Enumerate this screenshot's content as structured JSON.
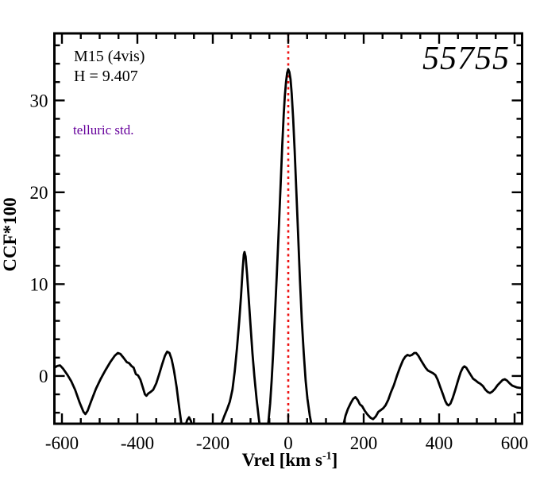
{
  "annotations": {
    "cluster": "M15 (4vis)",
    "magnitude": "H = 9.407",
    "note": "telluric std.",
    "id_number": "55755"
  },
  "labels": {
    "ylabel": "CCF*100",
    "xlabel_main": "Vrel [km s",
    "xlabel_sup": "-1",
    "xlabel_close": "]"
  },
  "colors": {
    "curve": "#000000",
    "frame": "#000000",
    "marker_line": "#ee1111",
    "note_text": "#66009b",
    "background": "#ffffff"
  },
  "chart_data": {
    "type": "line",
    "title": "",
    "xlabel": "Vrel [km s^-1]",
    "ylabel": "CCF*100",
    "xlim": [
      -620,
      620
    ],
    "ylim": [
      -5.2,
      37.3
    ],
    "x_major_ticks": [
      -600,
      -400,
      -200,
      0,
      200,
      400,
      600
    ],
    "x_tick_labels": [
      "-600",
      "-400",
      "-200",
      "0",
      "200",
      "400",
      "600"
    ],
    "x_minor_step": 50,
    "y_major_ticks": [
      0,
      10,
      20,
      30
    ],
    "y_tick_labels": [
      "0",
      "10",
      "20",
      "30"
    ],
    "y_minor_step": 2,
    "grid": false,
    "legend": null,
    "marker_line_x": 0,
    "series": [
      {
        "name": "ccf",
        "points": [
          [
            -620,
            0.9
          ],
          [
            -612,
            1.1
          ],
          [
            -605,
            1.15
          ],
          [
            -597,
            0.8
          ],
          [
            -585,
            0.1
          ],
          [
            -575,
            -0.6
          ],
          [
            -565,
            -1.5
          ],
          [
            -553,
            -2.9
          ],
          [
            -543,
            -3.9
          ],
          [
            -538,
            -4.15
          ],
          [
            -532,
            -3.8
          ],
          [
            -522,
            -2.7
          ],
          [
            -510,
            -1.4
          ],
          [
            -497,
            -0.3
          ],
          [
            -485,
            0.6
          ],
          [
            -472,
            1.5
          ],
          [
            -460,
            2.2
          ],
          [
            -452,
            2.5
          ],
          [
            -445,
            2.4
          ],
          [
            -437,
            2.0
          ],
          [
            -428,
            1.5
          ],
          [
            -422,
            1.4
          ],
          [
            -416,
            1.1
          ],
          [
            -410,
            0.9
          ],
          [
            -404,
            0.2
          ],
          [
            -398,
            0.05
          ],
          [
            -392,
            -0.4
          ],
          [
            -386,
            -1.2
          ],
          [
            -380,
            -2.0
          ],
          [
            -376,
            -2.15
          ],
          [
            -371,
            -1.9
          ],
          [
            -365,
            -1.75
          ],
          [
            -358,
            -1.5
          ],
          [
            -350,
            -0.8
          ],
          [
            -342,
            0.2
          ],
          [
            -334,
            1.3
          ],
          [
            -327,
            2.2
          ],
          [
            -321,
            2.65
          ],
          [
            -315,
            2.5
          ],
          [
            -309,
            1.8
          ],
          [
            -303,
            0.6
          ],
          [
            -296,
            -1.2
          ],
          [
            -290,
            -3.2
          ],
          [
            -284,
            -5.0
          ],
          [
            -280,
            -6.5
          ],
          [
            -274,
            -5.6
          ],
          [
            -268,
            -4.8
          ],
          [
            -263,
            -4.5
          ],
          [
            -258,
            -4.9
          ],
          [
            -252,
            -5.8
          ],
          [
            -240,
            -7.0
          ],
          [
            -220,
            -7.5
          ],
          [
            -200,
            -7.5
          ],
          [
            -185,
            -6.5
          ],
          [
            -177,
            -5.2
          ],
          [
            -170,
            -4.4
          ],
          [
            -162,
            -3.6
          ],
          [
            -155,
            -2.8
          ],
          [
            -148,
            -1.5
          ],
          [
            -142,
            0.5
          ],
          [
            -136,
            3.0
          ],
          [
            -130,
            6.0
          ],
          [
            -125,
            8.8
          ],
          [
            -121,
            11.5
          ],
          [
            -118,
            13.2
          ],
          [
            -116,
            13.5
          ],
          [
            -113,
            13.0
          ],
          [
            -109,
            11.0
          ],
          [
            -105,
            8.6
          ],
          [
            -100,
            5.5
          ],
          [
            -95,
            2.5
          ],
          [
            -90,
            0.0
          ],
          [
            -84,
            -2.5
          ],
          [
            -78,
            -4.6
          ],
          [
            -73,
            -6.2
          ],
          [
            -65,
            -7.5
          ],
          [
            -58,
            -6.8
          ],
          [
            -53,
            -5.2
          ],
          [
            -48,
            -3.0
          ],
          [
            -44,
            -0.5
          ],
          [
            -40,
            2.5
          ],
          [
            -36,
            6.0
          ],
          [
            -31,
            10.5
          ],
          [
            -26,
            15.0
          ],
          [
            -21,
            20.0
          ],
          [
            -16,
            25.0
          ],
          [
            -12,
            28.5
          ],
          [
            -9,
            30.5
          ],
          [
            -6,
            32.0
          ],
          [
            -3,
            33.0
          ],
          [
            0,
            33.4
          ],
          [
            3,
            33.1
          ],
          [
            6,
            32.3
          ],
          [
            9,
            30.8
          ],
          [
            13,
            28.0
          ],
          [
            17,
            24.5
          ],
          [
            21,
            20.5
          ],
          [
            26,
            15.5
          ],
          [
            31,
            10.5
          ],
          [
            36,
            6.0
          ],
          [
            41,
            2.5
          ],
          [
            46,
            -0.5
          ],
          [
            51,
            -2.5
          ],
          [
            57,
            -4.3
          ],
          [
            62,
            -5.4
          ],
          [
            67,
            -6.5
          ],
          [
            80,
            -7.8
          ],
          [
            100,
            -8.0
          ],
          [
            125,
            -7.5
          ],
          [
            140,
            -6.2
          ],
          [
            147,
            -5.2
          ],
          [
            152,
            -4.3
          ],
          [
            158,
            -3.6
          ],
          [
            165,
            -3.0
          ],
          [
            172,
            -2.5
          ],
          [
            178,
            -2.3
          ],
          [
            184,
            -2.6
          ],
          [
            190,
            -3.1
          ],
          [
            196,
            -3.3
          ],
          [
            203,
            -3.8
          ],
          [
            210,
            -4.2
          ],
          [
            218,
            -4.55
          ],
          [
            225,
            -4.7
          ],
          [
            232,
            -4.4
          ],
          [
            239,
            -3.9
          ],
          [
            246,
            -3.7
          ],
          [
            252,
            -3.5
          ],
          [
            258,
            -3.2
          ],
          [
            265,
            -2.6
          ],
          [
            272,
            -1.8
          ],
          [
            280,
            -1.0
          ],
          [
            288,
            0.0
          ],
          [
            296,
            0.9
          ],
          [
            304,
            1.7
          ],
          [
            310,
            2.1
          ],
          [
            316,
            2.3
          ],
          [
            322,
            2.2
          ],
          [
            328,
            2.3
          ],
          [
            334,
            2.5
          ],
          [
            339,
            2.5
          ],
          [
            345,
            2.2
          ],
          [
            352,
            1.7
          ],
          [
            358,
            1.3
          ],
          [
            364,
            0.9
          ],
          [
            370,
            0.6
          ],
          [
            377,
            0.45
          ],
          [
            384,
            0.3
          ],
          [
            390,
            0.1
          ],
          [
            396,
            -0.4
          ],
          [
            403,
            -1.2
          ],
          [
            410,
            -2.0
          ],
          [
            416,
            -2.7
          ],
          [
            421,
            -3.1
          ],
          [
            425,
            -3.2
          ],
          [
            430,
            -3.0
          ],
          [
            436,
            -2.4
          ],
          [
            443,
            -1.5
          ],
          [
            450,
            -0.5
          ],
          [
            457,
            0.4
          ],
          [
            463,
            0.9
          ],
          [
            467,
            1.05
          ],
          [
            472,
            0.9
          ],
          [
            478,
            0.5
          ],
          [
            484,
            0.1
          ],
          [
            490,
            -0.3
          ],
          [
            497,
            -0.5
          ],
          [
            503,
            -0.7
          ],
          [
            509,
            -0.85
          ],
          [
            516,
            -1.1
          ],
          [
            523,
            -1.5
          ],
          [
            529,
            -1.75
          ],
          [
            535,
            -1.85
          ],
          [
            541,
            -1.7
          ],
          [
            548,
            -1.4
          ],
          [
            555,
            -1.0
          ],
          [
            562,
            -0.7
          ],
          [
            568,
            -0.45
          ],
          [
            574,
            -0.35
          ],
          [
            580,
            -0.5
          ],
          [
            587,
            -0.8
          ],
          [
            594,
            -1.05
          ],
          [
            600,
            -1.15
          ],
          [
            607,
            -1.25
          ],
          [
            614,
            -1.3
          ],
          [
            620,
            -1.3
          ]
        ]
      }
    ]
  }
}
